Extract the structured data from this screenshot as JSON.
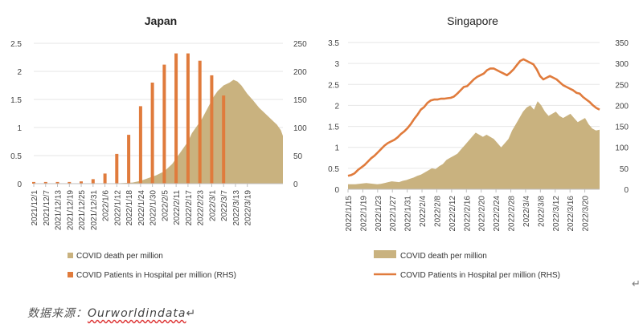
{
  "chart_data": [
    {
      "type": "bar+area",
      "title": "Japan",
      "x_tick_labels": [
        "2021/12/1",
        "2021/12/7",
        "2021/12/13",
        "2021/12/19",
        "2021/12/25",
        "2021/12/31",
        "2022/1/6",
        "2022/1/12",
        "2022/1/18",
        "2022/1/24",
        "2022/1/30",
        "2022/2/5",
        "2022/2/11",
        "2022/2/17",
        "2022/2/23",
        "2022/3/1",
        "2022/3/7",
        "2022/3/13",
        "2022/3/19"
      ],
      "y_left": {
        "min": 0,
        "max": 2.5,
        "ticks": [
          "0",
          "0.5",
          "1",
          "1.5",
          "2",
          "2.5"
        ]
      },
      "y_right": {
        "min": 0,
        "max": 250,
        "ticks": [
          "0",
          "50",
          "100",
          "150",
          "200",
          "250"
        ]
      },
      "series": [
        {
          "name": "COVID death per million",
          "kind": "area",
          "axis": "left",
          "color": "#c9b27f",
          "points": [
            [
              0,
              0
            ],
            [
              40,
              0
            ],
            [
              45,
              0.01
            ],
            [
              50,
              0.02
            ],
            [
              54,
              0.05
            ],
            [
              58,
              0.1
            ],
            [
              62,
              0.15
            ],
            [
              66,
              0.22
            ],
            [
              70,
              0.35
            ],
            [
              74,
              0.55
            ],
            [
              78,
              0.75
            ],
            [
              80,
              0.9
            ],
            [
              82,
              1.0
            ],
            [
              85,
              1.15
            ],
            [
              88,
              1.35
            ],
            [
              91,
              1.55
            ],
            [
              93,
              1.65
            ],
            [
              96,
              1.75
            ],
            [
              99,
              1.8
            ],
            [
              101,
              1.85
            ],
            [
              103,
              1.82
            ],
            [
              105,
              1.75
            ],
            [
              108,
              1.6
            ],
            [
              111,
              1.48
            ],
            [
              114,
              1.35
            ],
            [
              117,
              1.25
            ],
            [
              120,
              1.15
            ],
            [
              123,
              1.05
            ],
            [
              125,
              0.95
            ],
            [
              126,
              0.85
            ]
          ]
        },
        {
          "name": "COVID Patients in Hospital per million (RHS)",
          "kind": "bar",
          "axis": "right",
          "color": "#e07b3c",
          "x": [
            0,
            6,
            12,
            18,
            24,
            30,
            36,
            42,
            48,
            54,
            60,
            66,
            72,
            78,
            84,
            90,
            96,
            102,
            108
          ],
          "values": [
            3,
            3,
            3,
            3,
            4,
            8,
            18,
            53,
            87,
            138,
            180,
            212,
            232,
            232,
            219,
            193,
            157,
            0,
            0
          ]
        }
      ],
      "legend": [
        {
          "label": "COVID death per million",
          "marker": "square",
          "color": "#c9b27f"
        },
        {
          "label": "COVID Patients in Hospital per million (RHS)",
          "marker": "square",
          "color": "#e07b3c"
        }
      ]
    },
    {
      "type": "area+line",
      "title": "Singapore",
      "x_tick_labels": [
        "2022/1/15",
        "2022/1/19",
        "2022/1/23",
        "2022/1/27",
        "2022/1/31",
        "2022/2/4",
        "2022/2/8",
        "2022/2/12",
        "2022/2/16",
        "2022/2/20",
        "2022/2/24",
        "2022/2/28",
        "2022/3/4",
        "2022/3/8",
        "2022/3/12",
        "2022/3/16",
        "2022/3/20"
      ],
      "y_left": {
        "min": 0,
        "max": 3.5,
        "ticks": [
          "0",
          "0.5",
          "1",
          "1.5",
          "2",
          "2.5",
          "3",
          "3.5"
        ]
      },
      "y_right": {
        "min": 0,
        "max": 350,
        "ticks": [
          "0",
          "50",
          "100",
          "150",
          "200",
          "250",
          "300",
          "350"
        ]
      },
      "series": [
        {
          "name": "COVID death per million",
          "kind": "area",
          "axis": "left",
          "color": "#c9b27f",
          "values": [
            0.12,
            0.12,
            0.12,
            0.13,
            0.14,
            0.15,
            0.14,
            0.13,
            0.12,
            0.13,
            0.15,
            0.17,
            0.19,
            0.18,
            0.17,
            0.2,
            0.22,
            0.25,
            0.28,
            0.32,
            0.35,
            0.4,
            0.45,
            0.5,
            0.48,
            0.55,
            0.6,
            0.7,
            0.75,
            0.8,
            0.85,
            0.95,
            1.05,
            1.15,
            1.25,
            1.35,
            1.3,
            1.25,
            1.3,
            1.25,
            1.2,
            1.1,
            1.0,
            1.1,
            1.2,
            1.4,
            1.55,
            1.7,
            1.85,
            1.95,
            2.0,
            1.9,
            2.1,
            2.0,
            1.85,
            1.75,
            1.8,
            1.85,
            1.75,
            1.7,
            1.75,
            1.8,
            1.7,
            1.6,
            1.65,
            1.7,
            1.55,
            1.45,
            1.4,
            1.42
          ]
        },
        {
          "name": "COVID Patients in Hospital per million (RHS)",
          "kind": "line",
          "axis": "right",
          "color": "#e07b3c",
          "values": [
            32,
            34,
            38,
            46,
            52,
            58,
            66,
            74,
            80,
            88,
            96,
            104,
            110,
            114,
            118,
            124,
            132,
            138,
            146,
            156,
            168,
            178,
            190,
            196,
            206,
            212,
            214,
            214,
            216,
            216,
            217,
            218,
            221,
            228,
            236,
            244,
            246,
            254,
            262,
            268,
            272,
            276,
            284,
            288,
            288,
            284,
            280,
            276,
            272,
            278,
            286,
            296,
            306,
            310,
            306,
            302,
            298,
            286,
            270,
            262,
            266,
            270,
            266,
            262,
            255,
            248,
            244,
            240,
            236,
            230,
            228,
            220,
            214,
            208,
            200,
            194,
            190
          ]
        }
      ],
      "legend": [
        {
          "label": "COVID death per million",
          "marker": "block",
          "color": "#c9b27f"
        },
        {
          "label": "COVID Patients in Hospital per million (RHS)",
          "marker": "line",
          "color": "#e07b3c"
        }
      ]
    }
  ],
  "source_label": "数据来源：",
  "source_brand": "Ourworldindata",
  "para_mark": "↵"
}
